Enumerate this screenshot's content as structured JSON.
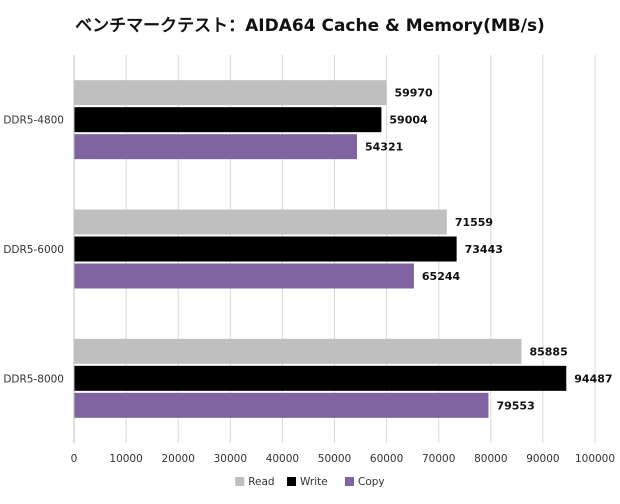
{
  "chart_data": {
    "type": "bar",
    "orientation": "horizontal",
    "title": "ベンチマークテスト：AIDA64 Cache & Memory(MB/s)",
    "categories": [
      "DDR5-4800",
      "DDR5-6000",
      "DDR5-8000"
    ],
    "series": [
      {
        "name": "Read",
        "values": [
          59970,
          71559,
          85885
        ],
        "color": "#bfbfbf"
      },
      {
        "name": "Write",
        "values": [
          59004,
          73443,
          94487
        ],
        "color": "#000000"
      },
      {
        "name": "Copy",
        "values": [
          54321,
          65244,
          79553
        ],
        "color": "#8064a2"
      }
    ],
    "xlim": [
      0,
      100000
    ],
    "xticks": [
      0,
      10000,
      20000,
      30000,
      40000,
      50000,
      60000,
      70000,
      80000,
      90000,
      100000
    ],
    "xlabel": "",
    "ylabel": "",
    "grid": "vertical",
    "legend": "bottom-center",
    "data_labels": true
  }
}
